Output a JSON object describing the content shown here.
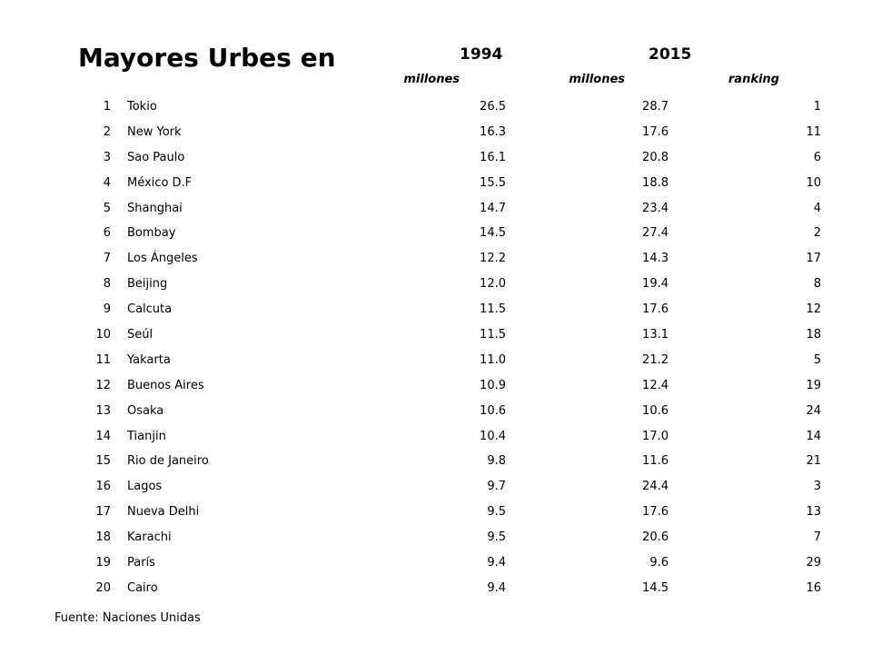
{
  "title": "Mayores Urbes en",
  "years": [
    "1994",
    "2015"
  ],
  "subheaders": {
    "c1994": "millones",
    "c2015_millones": "millones",
    "c2015_ranking": "ranking"
  },
  "rows": [
    {
      "rank": "1",
      "city": "Tokio",
      "v1994": "26.5",
      "v2015": "28.7",
      "rank2015": "1"
    },
    {
      "rank": "2",
      "city": "New York",
      "v1994": "16.3",
      "v2015": "17.6",
      "rank2015": "11"
    },
    {
      "rank": "3",
      "city": "Sao Paulo",
      "v1994": "16.1",
      "v2015": "20.8",
      "rank2015": "6"
    },
    {
      "rank": "4",
      "city": "México D.F",
      "v1994": "15.5",
      "v2015": "18.8",
      "rank2015": "10"
    },
    {
      "rank": "5",
      "city": "Shanghai",
      "v1994": "14.7",
      "v2015": "23.4",
      "rank2015": "4"
    },
    {
      "rank": "6",
      "city": "Bombay",
      "v1994": "14.5",
      "v2015": "27.4",
      "rank2015": "2"
    },
    {
      "rank": "7",
      "city": "Los Ángeles",
      "v1994": "12.2",
      "v2015": "14.3",
      "rank2015": "17"
    },
    {
      "rank": "8",
      "city": "Beijing",
      "v1994": "12.0",
      "v2015": "19.4",
      "rank2015": "8"
    },
    {
      "rank": "9",
      "city": "Calcuta",
      "v1994": "11.5",
      "v2015": "17.6",
      "rank2015": "12"
    },
    {
      "rank": "10",
      "city": "Seúl",
      "v1994": "11.5",
      "v2015": "13.1",
      "rank2015": "18"
    },
    {
      "rank": "11",
      "city": "Yakarta",
      "v1994": "11.0",
      "v2015": "21.2",
      "rank2015": "5"
    },
    {
      "rank": "12",
      "city": "Buenos Aires",
      "v1994": "10.9",
      "v2015": "12.4",
      "rank2015": "19"
    },
    {
      "rank": "13",
      "city": "Osaka",
      "v1994": "10.6",
      "v2015": "10.6",
      "rank2015": "24"
    },
    {
      "rank": "14",
      "city": "Tianjin",
      "v1994": "10.4",
      "v2015": "17.0",
      "rank2015": "14"
    },
    {
      "rank": "15",
      "city": "Rio de Janeiro",
      "v1994": "9.8",
      "v2015": "11.6",
      "rank2015": "21"
    },
    {
      "rank": "16",
      "city": "Lagos",
      "v1994": "9.7",
      "v2015": "24.4",
      "rank2015": "3"
    },
    {
      "rank": "17",
      "city": "Nueva Delhi",
      "v1994": "9.5",
      "v2015": "17.6",
      "rank2015": "13"
    },
    {
      "rank": "18",
      "city": "Karachi",
      "v1994": "9.5",
      "v2015": "20.6",
      "rank2015": "7"
    },
    {
      "rank": "19",
      "city": "París",
      "v1994": "9.4",
      "v2015": "9.6",
      "rank2015": "29"
    },
    {
      "rank": "20",
      "city": "Cairo",
      "v1994": "9.4",
      "v2015": "14.5",
      "rank2015": "16"
    }
  ],
  "source": "Fuente: Naciones Unidas"
}
